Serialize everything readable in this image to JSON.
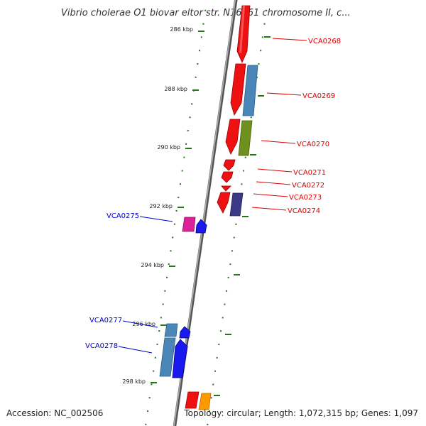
{
  "title": "Vibrio cholerae O1 biovar eltor str. N16961 chromosome II, c...",
  "footer": {
    "accession": "Accession: NC_002506",
    "summary": "Topology: circular; Length: 1,072,315 bp; Genes: 1,097"
  },
  "ticks": [
    "286 kbp",
    "288 kbp",
    "290 kbp",
    "292 kbp",
    "294 kbp",
    "296 kbp",
    "298 kbp"
  ],
  "genes": [
    {
      "id": "VCA0268",
      "strand": "forward"
    },
    {
      "id": "VCA0269",
      "strand": "forward"
    },
    {
      "id": "VCA0270",
      "strand": "forward"
    },
    {
      "id": "VCA0271",
      "strand": "forward"
    },
    {
      "id": "VCA0272",
      "strand": "forward"
    },
    {
      "id": "VCA0273",
      "strand": "forward"
    },
    {
      "id": "VCA0274",
      "strand": "forward"
    },
    {
      "id": "VCA0275",
      "strand": "reverse"
    },
    {
      "id": "VCA0277",
      "strand": "reverse"
    },
    {
      "id": "VCA0278",
      "strand": "reverse"
    }
  ],
  "colors": {
    "forward_label": "#dd0000",
    "reverse_label": "#0000cc",
    "backbone": "#888888",
    "tick": "#2e7d12",
    "red": "#ee1111",
    "steel": "#4a86b8",
    "olive": "#6f8f1f",
    "purple": "#3c3a86",
    "magenta": "#dd2299",
    "blue": "#1a1aee",
    "orange": "#ff9900"
  }
}
